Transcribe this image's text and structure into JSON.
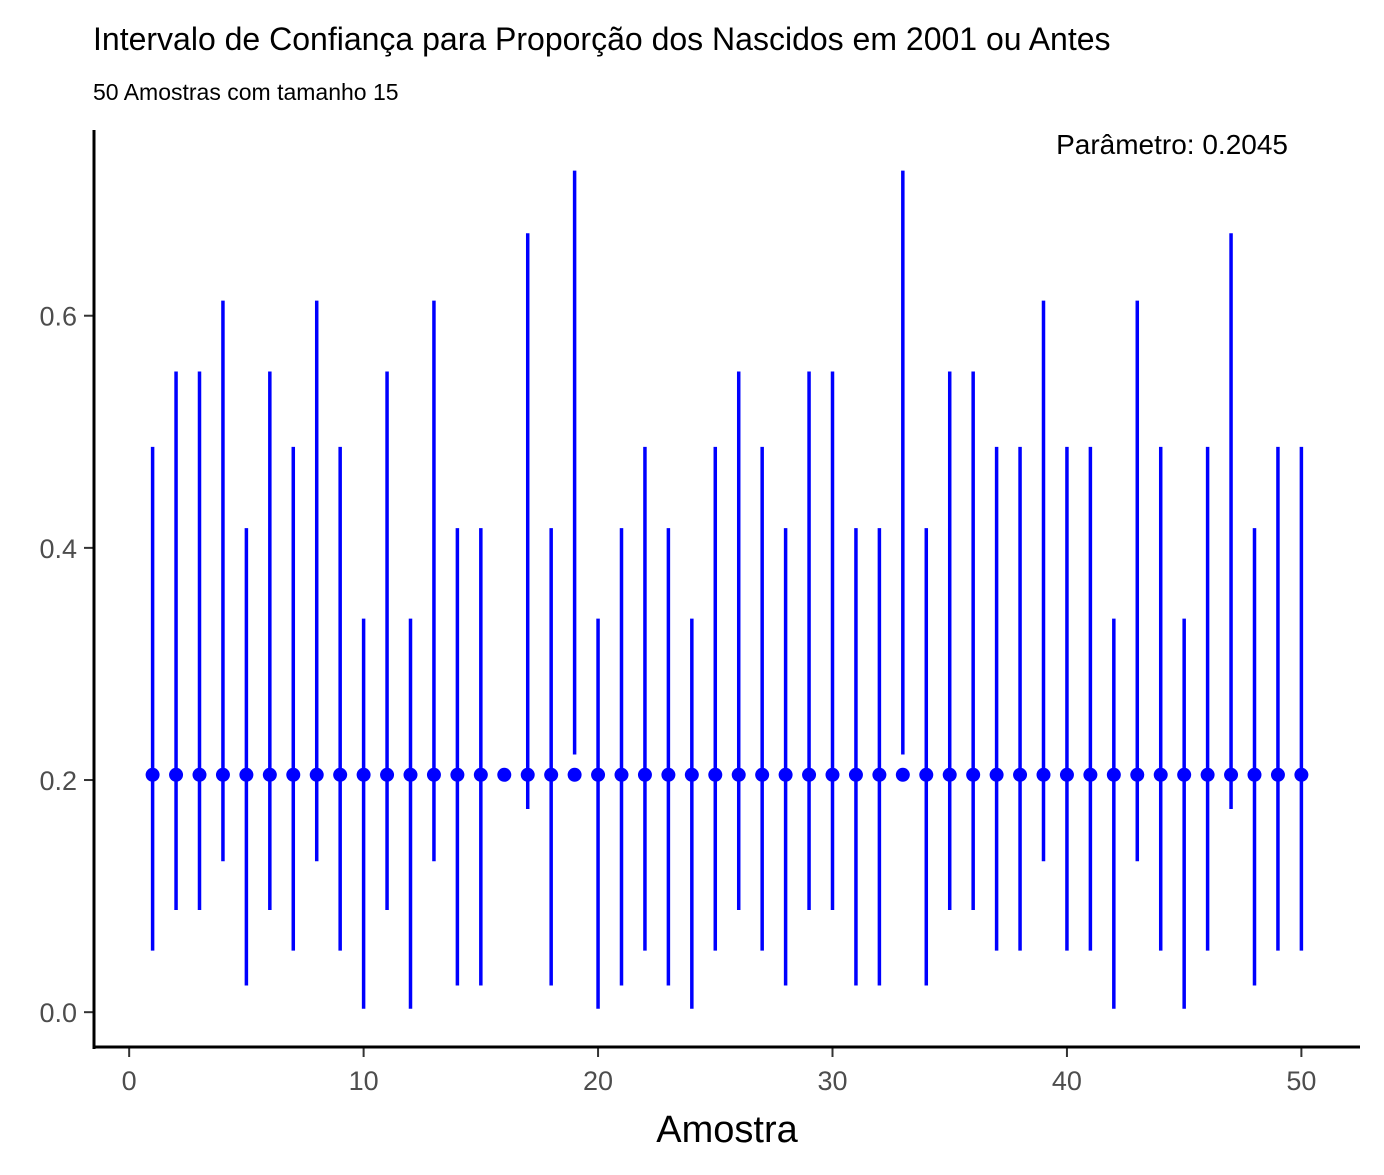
{
  "chart_data": {
    "type": "errorbar",
    "title": "Intervalo de Confiança para Proporção dos Nascidos em 2001 ou Antes",
    "subtitle": "50 Amostras com tamanho 15",
    "annotation": "Parâmetro: 0.2045",
    "xlabel": "Amostra",
    "ylabel": "",
    "xlim": [
      -1.5,
      52.5
    ],
    "ylim": [
      -0.03,
      0.76
    ],
    "xticks": [
      0,
      10,
      20,
      30,
      40,
      50
    ],
    "xtick_labels": [
      "0",
      "10",
      "20",
      "30",
      "40",
      "50"
    ],
    "yticks": [
      0.0,
      0.2,
      0.4,
      0.6
    ],
    "ytick_labels": [
      "0.0",
      "0.2",
      "0.4",
      "0.6"
    ],
    "parameter": 0.2045,
    "grid": false,
    "color": "#0000ff",
    "x": [
      1,
      2,
      3,
      4,
      5,
      6,
      7,
      8,
      9,
      10,
      11,
      12,
      13,
      14,
      15,
      16,
      17,
      18,
      19,
      20,
      21,
      22,
      23,
      24,
      25,
      26,
      27,
      28,
      29,
      30,
      31,
      32,
      33,
      34,
      35,
      36,
      37,
      38,
      39,
      40,
      41,
      42,
      43,
      44,
      45,
      46,
      47,
      48,
      49,
      50
    ],
    "estimate": [
      0.2045,
      0.2045,
      0.2045,
      0.2045,
      0.2045,
      0.2045,
      0.2045,
      0.2045,
      0.2045,
      0.2045,
      0.2045,
      0.2045,
      0.2045,
      0.2045,
      0.2045,
      0.2045,
      0.2045,
      0.2045,
      0.2045,
      0.2045,
      0.2045,
      0.2045,
      0.2045,
      0.2045,
      0.2045,
      0.2045,
      0.2045,
      0.2045,
      0.2045,
      0.2045,
      0.2045,
      0.2045,
      0.2045,
      0.2045,
      0.2045,
      0.2045,
      0.2045,
      0.2045,
      0.2045,
      0.2045,
      0.2045,
      0.2045,
      0.2045,
      0.2045,
      0.2045,
      0.2045,
      0.2045,
      0.2045,
      0.2045,
      0.2045
    ],
    "lower": [
      0.053,
      0.088,
      0.088,
      0.13,
      0.023,
      0.088,
      0.053,
      0.13,
      0.053,
      0.003,
      0.088,
      0.003,
      0.13,
      0.023,
      0.023,
      null,
      0.175,
      0.023,
      0.222,
      0.003,
      0.023,
      0.053,
      0.023,
      0.003,
      0.053,
      0.088,
      0.053,
      0.023,
      0.088,
      0.088,
      0.023,
      0.023,
      0.222,
      0.023,
      0.088,
      0.088,
      0.053,
      0.053,
      0.13,
      0.053,
      0.053,
      0.003,
      0.13,
      0.053,
      0.003,
      0.053,
      0.175,
      0.023,
      0.053,
      0.053
    ],
    "upper": [
      0.487,
      0.552,
      0.552,
      0.613,
      0.417,
      0.552,
      0.487,
      0.613,
      0.487,
      0.339,
      0.552,
      0.339,
      0.613,
      0.417,
      0.417,
      null,
      0.671,
      0.417,
      0.725,
      0.339,
      0.417,
      0.487,
      0.417,
      0.339,
      0.487,
      0.552,
      0.487,
      0.417,
      0.552,
      0.552,
      0.417,
      0.417,
      0.725,
      0.417,
      0.552,
      0.552,
      0.487,
      0.487,
      0.613,
      0.487,
      0.487,
      0.339,
      0.613,
      0.487,
      0.339,
      0.487,
      0.671,
      0.417,
      0.487,
      0.487
    ]
  }
}
